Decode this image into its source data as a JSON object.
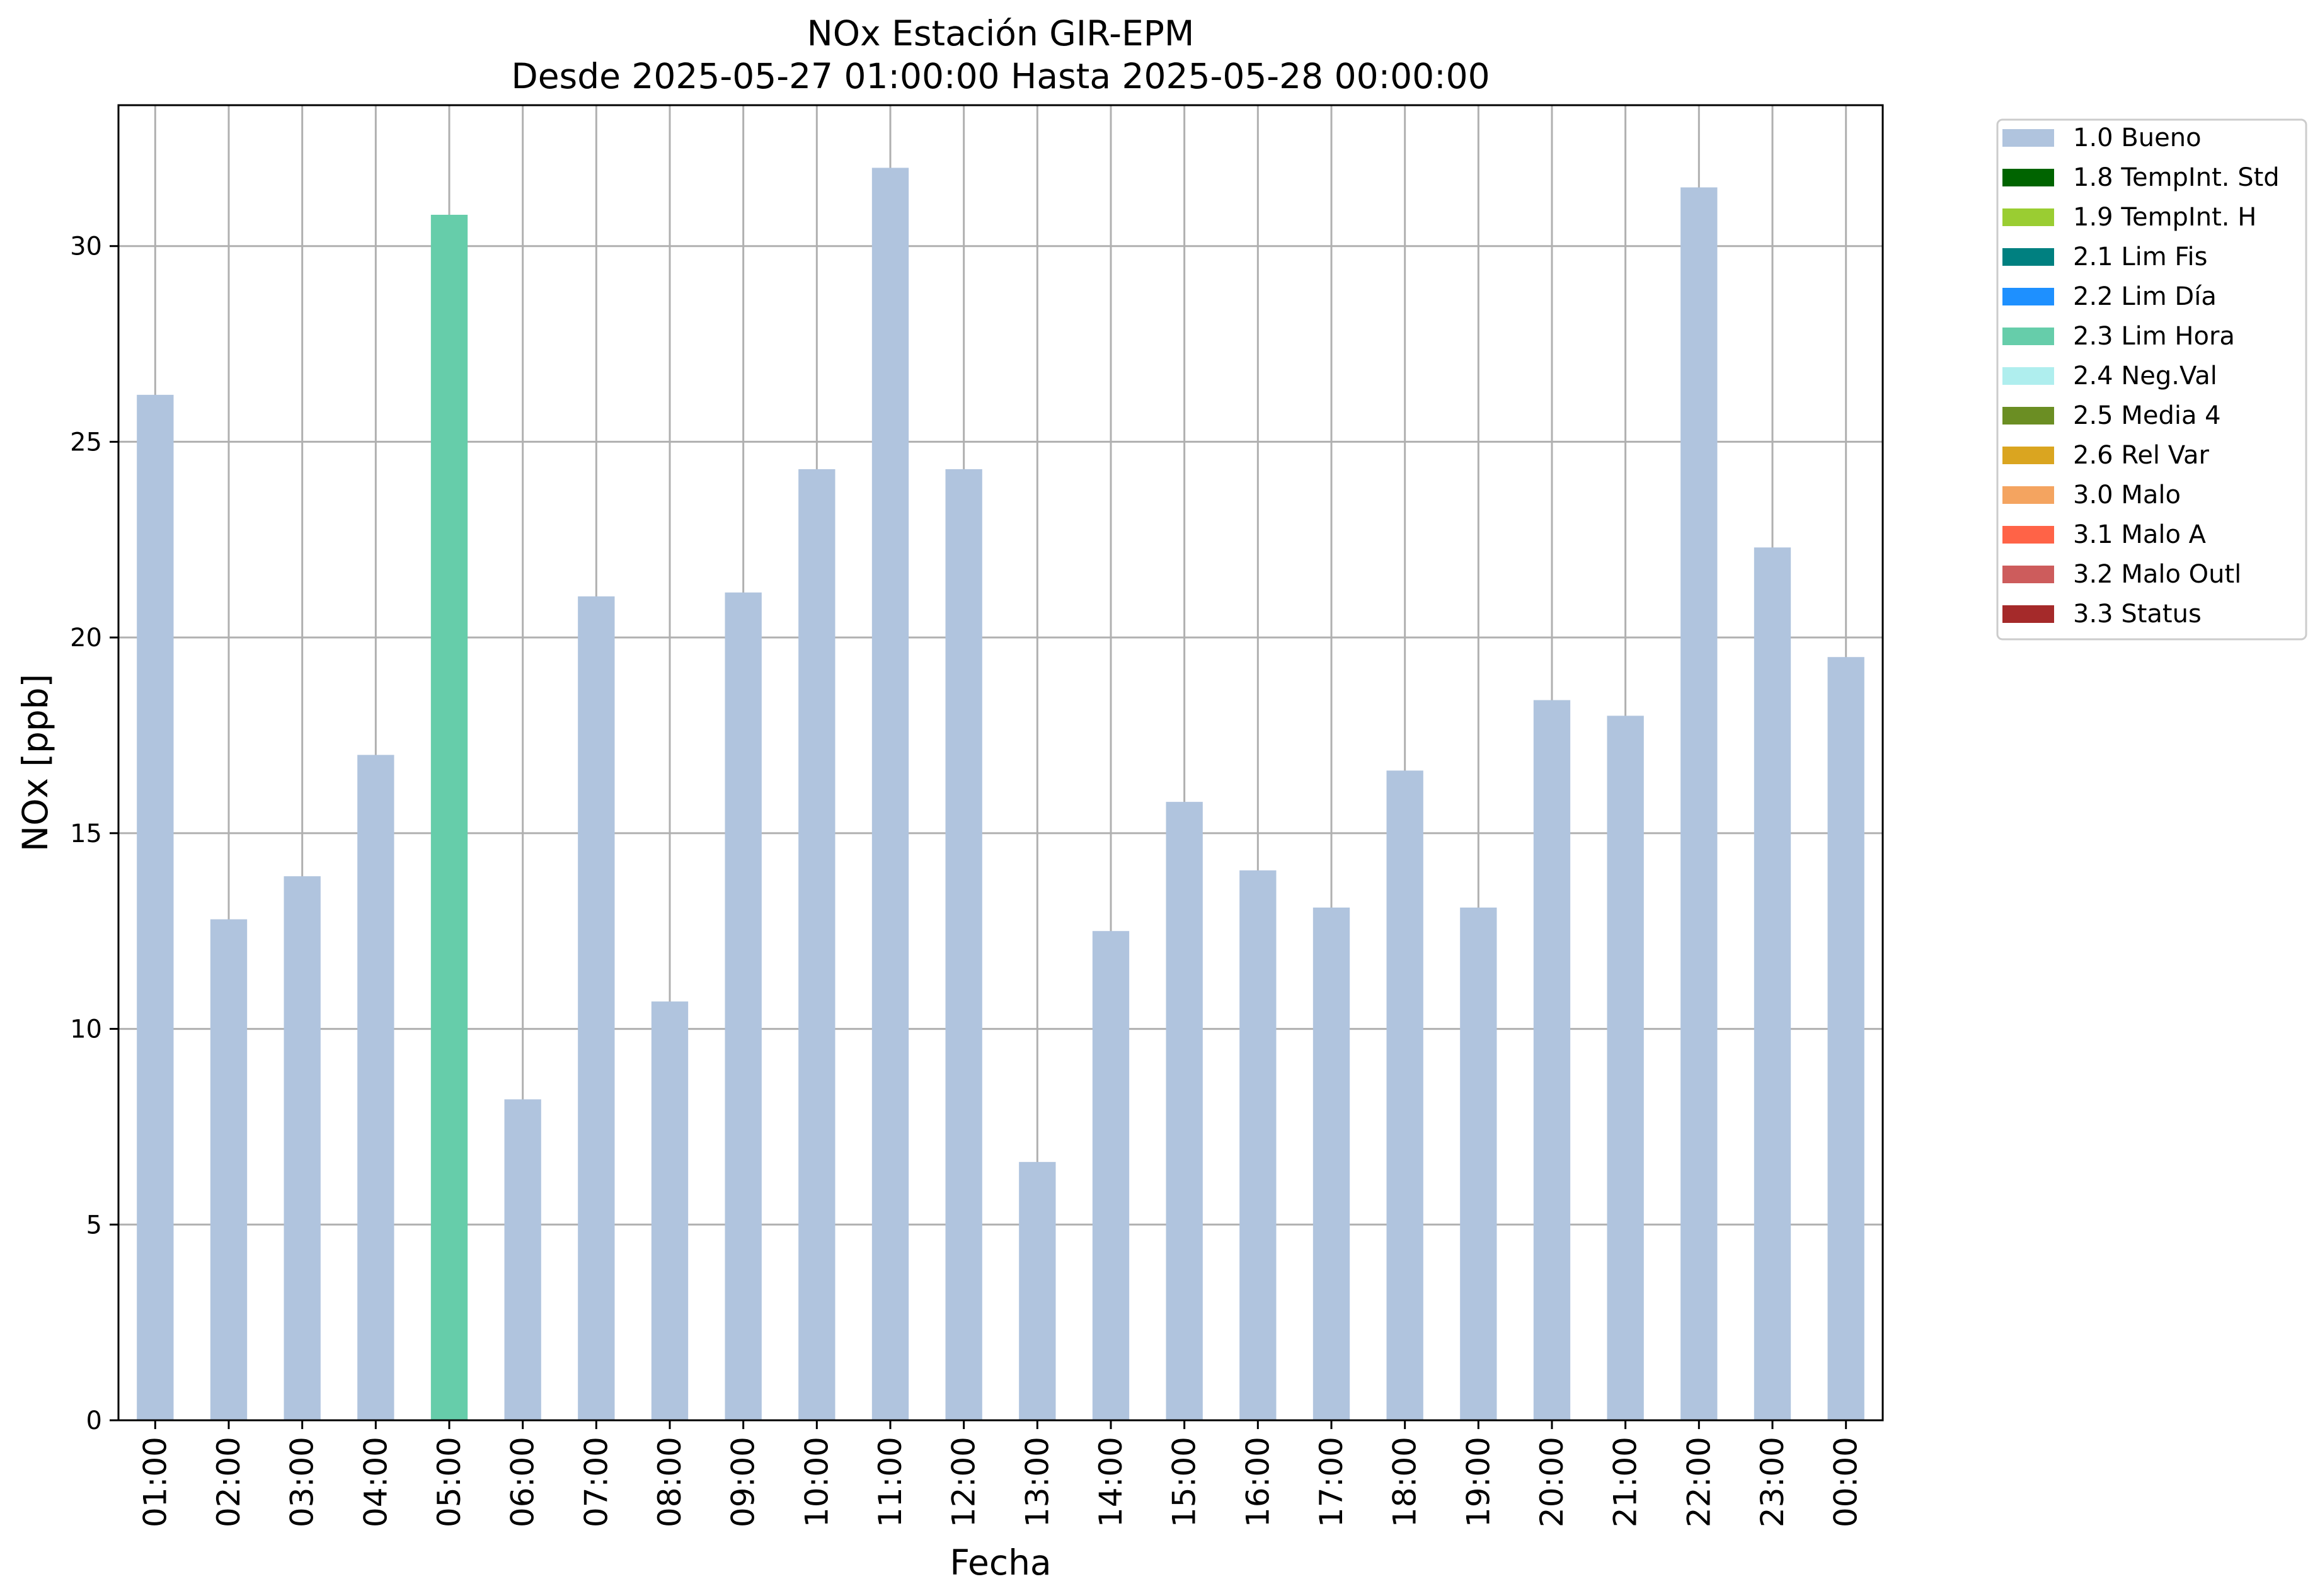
{
  "chart_data": {
    "type": "bar",
    "title": "NOx Estación GIR-EPM",
    "subtitle": "Desde 2025-05-27 01:00:00 Hasta 2025-05-28 00:00:00",
    "xlabel": "Fecha",
    "ylabel": "NOx [ppb]",
    "ylim": [
      0,
      33.6
    ],
    "yticks": [
      0,
      5,
      10,
      15,
      20,
      25,
      30
    ],
    "grid": true,
    "legend_position": "outside top-right",
    "categories": [
      "01:00",
      "02:00",
      "03:00",
      "04:00",
      "05:00",
      "06:00",
      "07:00",
      "08:00",
      "09:00",
      "10:00",
      "11:00",
      "12:00",
      "13:00",
      "14:00",
      "15:00",
      "16:00",
      "17:00",
      "18:00",
      "19:00",
      "20:00",
      "21:00",
      "22:00",
      "23:00",
      "00:00"
    ],
    "values": [
      26.2,
      12.8,
      13.9,
      17.0,
      30.8,
      8.2,
      21.05,
      10.7,
      21.15,
      24.3,
      32.0,
      24.3,
      6.6,
      12.5,
      15.8,
      14.05,
      13.1,
      16.6,
      13.1,
      18.4,
      18.0,
      31.5,
      22.3,
      19.5
    ],
    "flags": [
      "1.0 Bueno",
      "1.0 Bueno",
      "1.0 Bueno",
      "1.0 Bueno",
      "2.3 Lim Hora",
      "1.0 Bueno",
      "1.0 Bueno",
      "1.0 Bueno",
      "1.0 Bueno",
      "1.0 Bueno",
      "1.0 Bueno",
      "1.0 Bueno",
      "1.0 Bueno",
      "1.0 Bueno",
      "1.0 Bueno",
      "1.0 Bueno",
      "1.0 Bueno",
      "1.0 Bueno",
      "1.0 Bueno",
      "1.0 Bueno",
      "1.0 Bueno",
      "1.0 Bueno",
      "1.0 Bueno",
      "1.0 Bueno"
    ],
    "legend": [
      {
        "name": "1.0 Bueno",
        "color": "#b0c4de"
      },
      {
        "name": "1.8 TempInt. Std",
        "color": "#006400"
      },
      {
        "name": "1.9 TempInt. H",
        "color": "#9acd32"
      },
      {
        "name": "2.1 Lim Fis",
        "color": "#008080"
      },
      {
        "name": "2.2 Lim Día",
        "color": "#1e90ff"
      },
      {
        "name": "2.3 Lim Hora",
        "color": "#66cdaa"
      },
      {
        "name": "2.4 Neg.Val",
        "color": "#afeeee"
      },
      {
        "name": "2.5 Media 4",
        "color": "#6b8e23"
      },
      {
        "name": "2.6 Rel Var",
        "color": "#daa520"
      },
      {
        "name": "3.0 Malo",
        "color": "#f4a460"
      },
      {
        "name": "3.1 Malo A",
        "color": "#ff6347"
      },
      {
        "name": "3.2 Malo Outl",
        "color": "#cd5c5c"
      },
      {
        "name": "3.3 Status",
        "color": "#a52a2a"
      }
    ]
  }
}
